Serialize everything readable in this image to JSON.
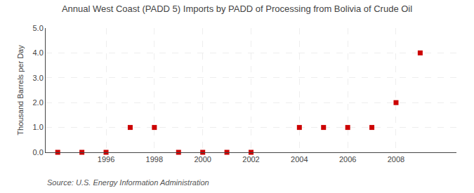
{
  "chart_data": {
    "type": "scatter",
    "title": "Annual West Coast (PADD 5) Imports by PADD of Processing from Bolivia of Crude Oil",
    "ylabel": "Thousand Barrels per Day",
    "annotations": [
      "Source: U.S. Energy Information Administration"
    ],
    "x": [
      1994,
      1995,
      1996,
      1997,
      1998,
      1999,
      2000,
      2001,
      2002,
      2004,
      2005,
      2006,
      2007,
      2008,
      2009
    ],
    "values": [
      0,
      0,
      0,
      1,
      1,
      0,
      0,
      0,
      0,
      1,
      1,
      1,
      1,
      2,
      4
    ],
    "color": "#cc0000",
    "marker": "square",
    "xlim": [
      1993.5,
      2010.5
    ],
    "xticks": [
      1996,
      1998,
      2000,
      2002,
      2004,
      2006,
      2008
    ],
    "ylim": [
      0.0,
      5.0
    ],
    "yticks": [
      {
        "value": 0,
        "label": "0.0"
      },
      {
        "value": 1,
        "label": "1.0"
      },
      {
        "value": 2,
        "label": "2.0"
      },
      {
        "value": 3,
        "label": "3.0"
      },
      {
        "value": 4,
        "label": "4.0"
      },
      {
        "value": 5,
        "label": "5.0"
      }
    ],
    "grid": true
  }
}
